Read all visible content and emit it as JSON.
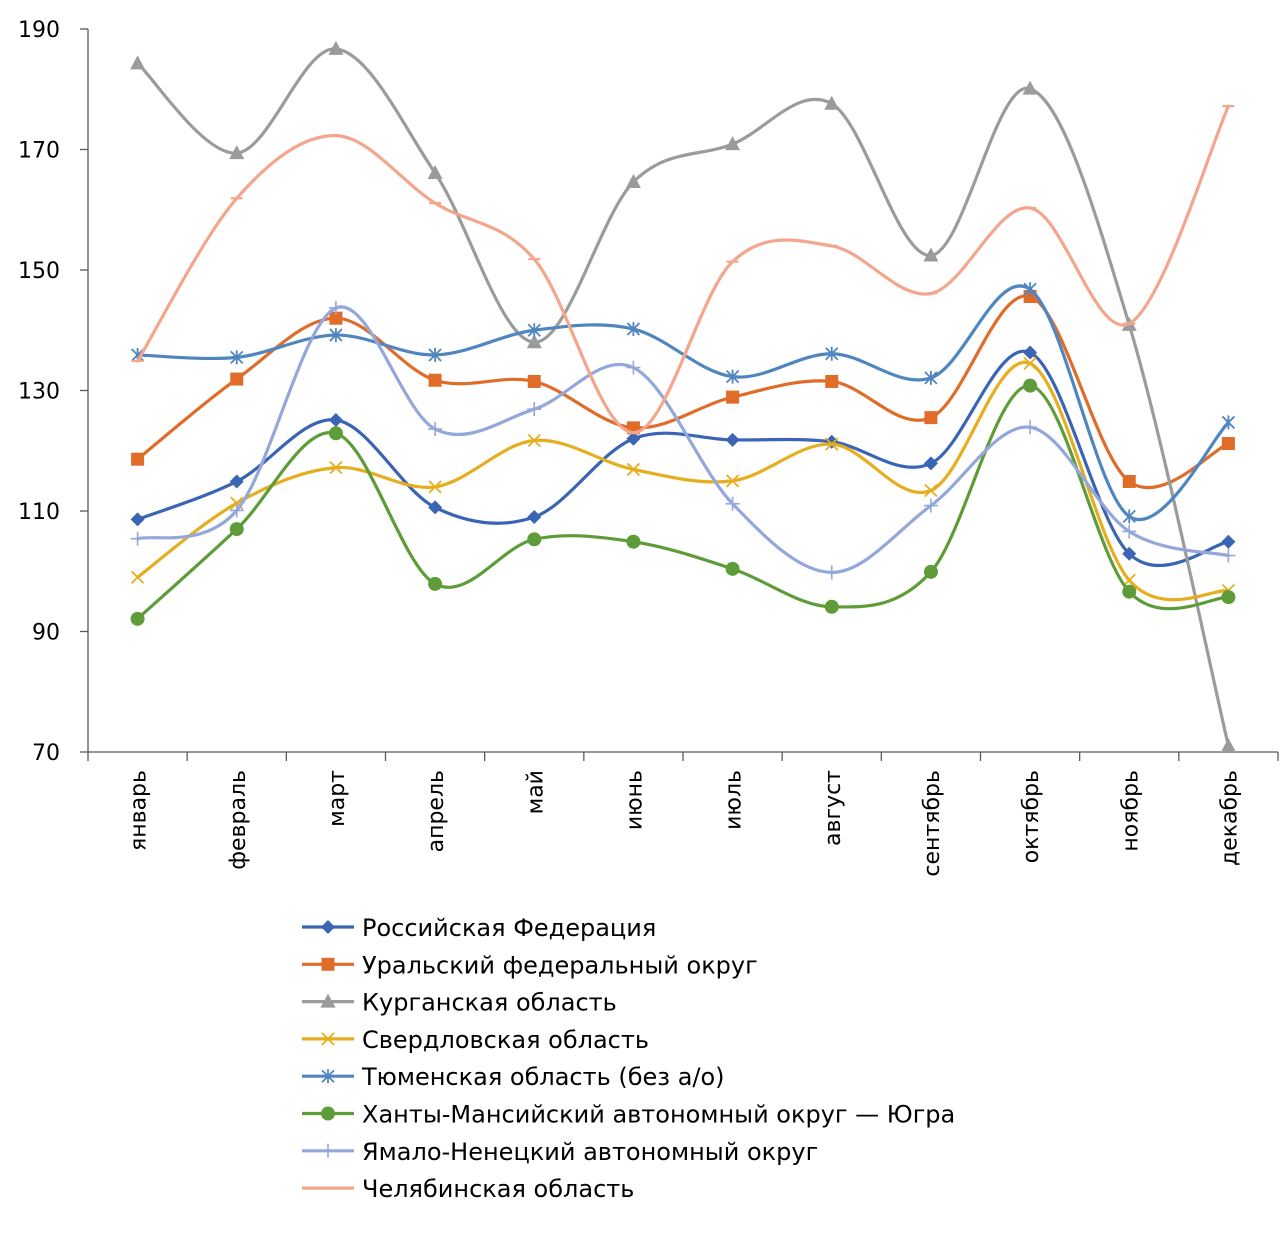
{
  "chart_data": {
    "type": "line",
    "title": "",
    "xlabel": "",
    "ylabel": "",
    "ylim": [
      70,
      190
    ],
    "yticks": [
      70,
      90,
      110,
      130,
      150,
      170,
      190
    ],
    "smooth": true,
    "grid": false,
    "legend_position": "bottom",
    "categories": [
      "январь",
      "февраль",
      "март",
      "апрель",
      "май",
      "июнь",
      "июль",
      "август",
      "сентябрь",
      "октябрь",
      "ноябрь",
      "декабрь"
    ],
    "series": [
      {
        "name": "Российская Федерация",
        "color": "#3A64B4",
        "marker": "diamond",
        "values": [
          108.6,
          114.9,
          125.1,
          110.6,
          109.0,
          122.0,
          121.8,
          121.5,
          117.9,
          136.3,
          102.9,
          104.9
        ]
      },
      {
        "name": "Уральский федеральный округ",
        "color": "#E06C2A",
        "marker": "square",
        "values": [
          118.6,
          131.9,
          142.0,
          131.7,
          131.5,
          123.8,
          128.9,
          131.5,
          125.5,
          145.6,
          114.9,
          121.2
        ]
      },
      {
        "name": "Курганская область",
        "color": "#9B9B9B",
        "marker": "triangle",
        "values": [
          184.3,
          169.4,
          186.7,
          166.1,
          138.0,
          164.6,
          170.9,
          177.6,
          152.4,
          180.1,
          140.9,
          71.0
        ]
      },
      {
        "name": "Свердловская область",
        "color": "#E6AE1E",
        "marker": "x",
        "values": [
          99.0,
          111.3,
          117.2,
          114.0,
          121.7,
          116.9,
          115.0,
          121.1,
          113.4,
          134.5,
          98.5,
          96.8
        ]
      },
      {
        "name": "Тюменская область (без а/о)",
        "color": "#4F86BF",
        "marker": "asterisk",
        "values": [
          135.9,
          135.5,
          139.2,
          135.9,
          140.0,
          140.2,
          132.3,
          136.1,
          132.1,
          146.8,
          109.1,
          124.7
        ]
      },
      {
        "name": "Ханты-Мансийский автономный округ — Югра",
        "color": "#5E9C3A",
        "marker": "circle",
        "values": [
          92.1,
          107.0,
          122.9,
          97.9,
          105.3,
          104.9,
          100.4,
          94.1,
          99.9,
          130.8,
          96.6,
          95.7
        ]
      },
      {
        "name": "Ямало-Ненецкий автономный округ",
        "color": "#93A7DA",
        "marker": "plus",
        "values": [
          105.4,
          110.1,
          143.7,
          123.6,
          126.9,
          133.8,
          111.2,
          99.8,
          110.9,
          123.9,
          106.6,
          102.6
        ]
      },
      {
        "name": "Челябинская область",
        "color": "#F4A68D",
        "marker": "dash",
        "values": [
          134.9,
          161.9,
          172.3,
          161.1,
          151.8,
          123.0,
          151.4,
          154.0,
          146.1,
          160.3,
          141.1,
          177.2
        ]
      }
    ]
  }
}
